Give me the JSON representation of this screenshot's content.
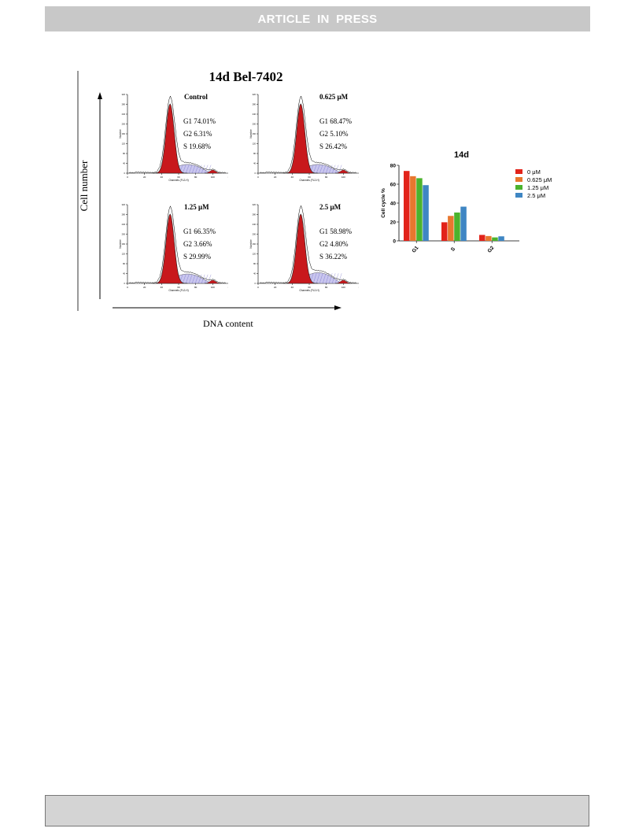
{
  "header": {
    "banner": "ARTICLE  IN  PRESS"
  },
  "figure": {
    "title": "14d Bel-7402",
    "y_axis_label": "Cell number",
    "x_axis_label": "DNA content",
    "histogram_axis": {
      "ylabel": "Number",
      "xlabel": "Channels (FL2-H)",
      "xticks": [
        "0",
        "20",
        "40",
        "60",
        "80",
        "100",
        "120"
      ],
      "yticks": [
        "0",
        "40",
        "80",
        "120",
        "160",
        "200",
        "240",
        "280",
        "320"
      ]
    },
    "panels": [
      {
        "title": "Control",
        "g1": "G1  74.01%",
        "g2": "G2  6.31%",
        "s": "S   19.68%"
      },
      {
        "title": "0.625 μM",
        "g1": "G1  68.47%",
        "g2": "G2  5.10%",
        "s": "S   26.42%"
      },
      {
        "title": "1.25 μM",
        "g1": "G1  66.35%",
        "g2": "G2  3.66%",
        "s": "S   29.99%"
      },
      {
        "title": "2.5 μM",
        "g1": "G1  58.98%",
        "g2": "G2  4.80%",
        "s": "S   36.22%"
      }
    ],
    "colors": {
      "g1_fill": "#c8181c",
      "s_fill": "#c9c6ee"
    }
  },
  "chart_data": {
    "type": "bar",
    "title": "14d",
    "ylabel": "Cell cycle %",
    "xlabel": "",
    "categories": [
      "G1",
      "S",
      "G2"
    ],
    "ylim": [
      0,
      80
    ],
    "yticks": [
      "0",
      "20",
      "40",
      "60",
      "80"
    ],
    "series": [
      {
        "name": "0 μM",
        "color": "#e2231a",
        "values": [
          74.01,
          19.68,
          6.31
        ]
      },
      {
        "name": "0.625 μM",
        "color": "#e8772e",
        "values": [
          68.47,
          26.42,
          5.1
        ]
      },
      {
        "name": "1.25 μM",
        "color": "#4bb32d",
        "values": [
          66.35,
          29.99,
          3.66
        ]
      },
      {
        "name": "2.5 μM",
        "color": "#3f86c3",
        "values": [
          58.98,
          36.22,
          4.8
        ]
      }
    ],
    "legend_position": "right"
  }
}
